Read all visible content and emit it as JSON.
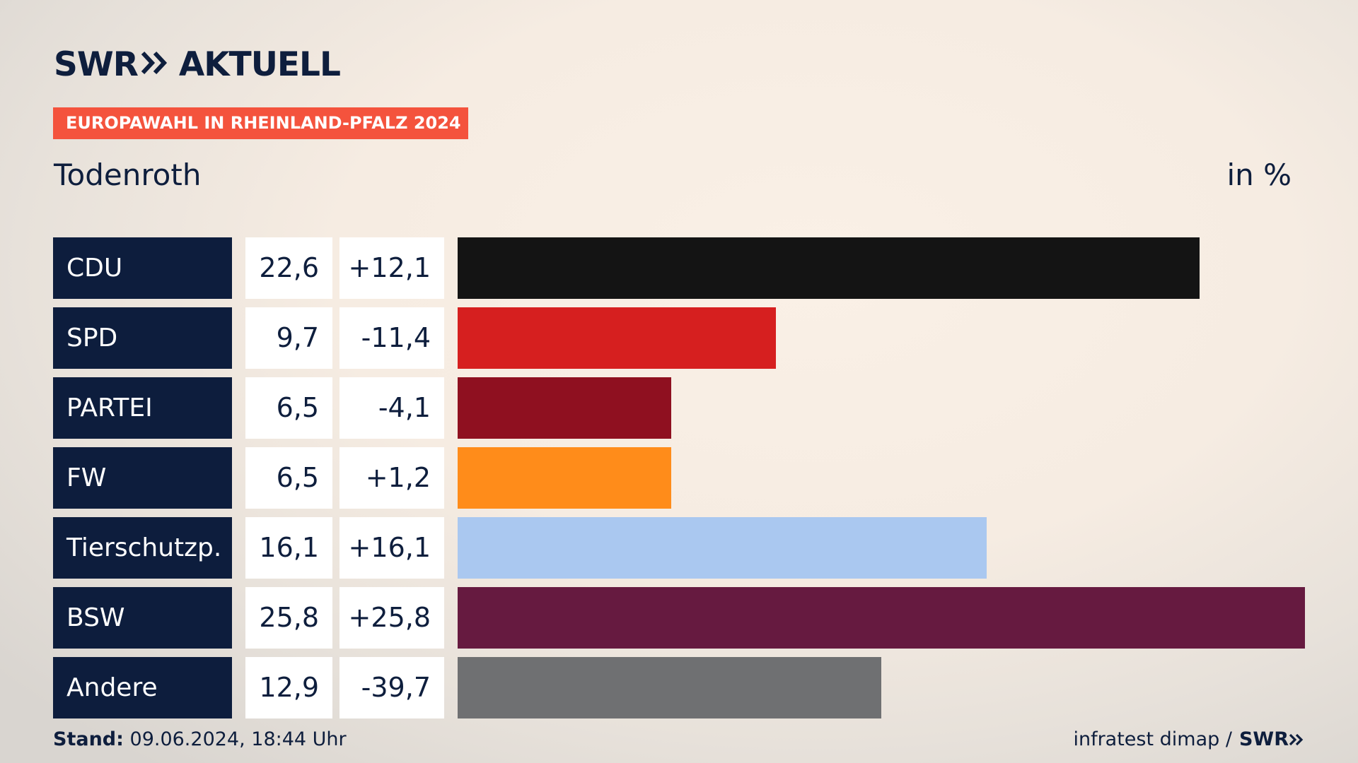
{
  "brand": {
    "logo_text": "SWR",
    "logo_suffix": "AKTUELL"
  },
  "banner": "EUROPAWAHL IN RHEINLAND-PFALZ 2024",
  "subtitle": "Todenroth",
  "unit": "in %",
  "colors": {
    "banner": "#f4533d",
    "party_cell": "#0d1d3d",
    "text": "#0e1e3d"
  },
  "chart_data": {
    "type": "bar",
    "orientation": "horizontal",
    "categories": [
      "CDU",
      "SPD",
      "PARTEI",
      "FW",
      "Tierschutzp.",
      "BSW",
      "Andere"
    ],
    "values": [
      22.6,
      9.7,
      6.5,
      6.5,
      16.1,
      25.8,
      12.9
    ],
    "value_labels": [
      "22,6",
      "9,7",
      "6,5",
      "6,5",
      "16,1",
      "25,8",
      "12,9"
    ],
    "changes": [
      12.1,
      -11.4,
      -4.1,
      1.2,
      16.1,
      25.8,
      -39.7
    ],
    "change_labels": [
      "+12,1",
      "-11,4",
      "-4,1",
      "+1,2",
      "+16,1",
      "+25,8",
      "-39,7"
    ],
    "colors": [
      "#141414",
      "#d61f1f",
      "#8f1020",
      "#ff8c1a",
      "#aac8f0",
      "#661a40",
      "#6f7072"
    ],
    "xlim": [
      0,
      25.8
    ],
    "title": "Todenroth",
    "xlabel": "",
    "ylabel": "in %",
    "grid": false,
    "legend": "none"
  },
  "footer": {
    "stand_label": "Stand:",
    "stand_value": "09.06.2024, 18:44 Uhr",
    "source": "infratest dimap /",
    "source_logo": "SWR"
  }
}
